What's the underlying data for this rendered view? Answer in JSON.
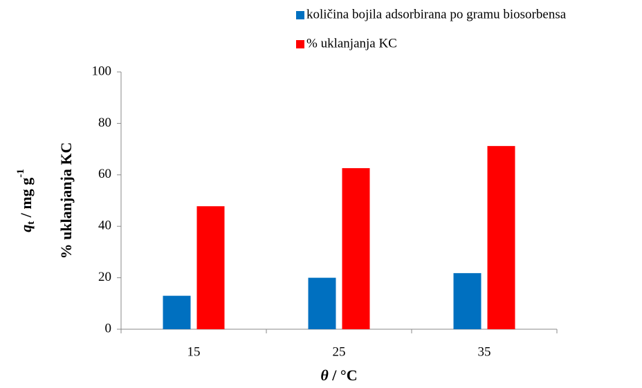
{
  "chart_data": {
    "type": "bar",
    "ylabel": [
      "q",
      "t",
      " / mg g",
      "-1"
    ],
    "ylabel2": "% uklanjanja KC",
    "xlabel": [
      "θ",
      " / °C"
    ],
    "categories": [
      "15",
      "25",
      "35"
    ],
    "series": [
      {
        "name": "količina bojila adsorbirana po gramu biosorbensa",
        "color": "#0070c0",
        "values": [
          13,
          20,
          21.8
        ]
      },
      {
        "name": "% uklanjanja KC",
        "color": "#ff0000",
        "values": [
          47.8,
          62.6,
          71.2
        ]
      }
    ],
    "ylim": [
      0,
      100
    ],
    "yticks": [
      0,
      20,
      40,
      60,
      80,
      100
    ],
    "grid": false
  }
}
